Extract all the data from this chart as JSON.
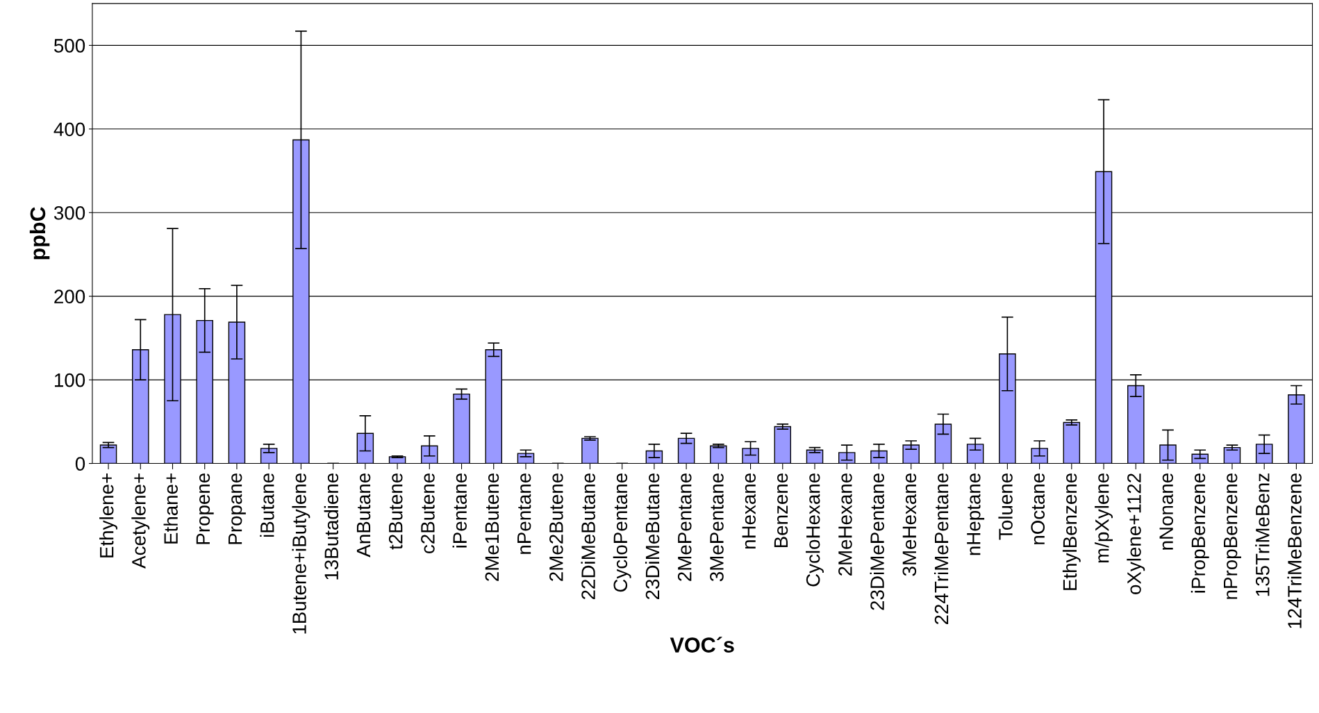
{
  "chart_data": {
    "type": "bar",
    "xlabel": "VOC´s",
    "ylabel": "ppbC",
    "categories": [
      "Ethylene+",
      "Acetylene+",
      "Ethane+",
      "Propene",
      "Propane",
      "iButane",
      "1Butene+iButylene",
      "13Butadiene",
      "AnButane",
      "t2Butene",
      "c2Butene",
      "iPentane",
      "2Me1Butene",
      "nPentane",
      "2Me2Butene",
      "22DiMeButane",
      "CycloPentane",
      "23DiMeButane",
      "2MePentane",
      "3MePentane",
      "nHexane",
      "Benzene",
      "CycloHexane",
      "2MeHexane",
      "23DiMePentane",
      "3MeHexane",
      "224TriMePentane",
      "nHeptane",
      "Toluene",
      "nOctane",
      "EthylBenzene",
      "m/pXylene",
      "oXylene+1122",
      "nNonane",
      "iPropBenzene",
      "nPropBenzene",
      "135TriMeBenz",
      "124TriMeBenzene"
    ],
    "values": [
      22,
      136,
      178,
      171,
      169,
      18,
      387,
      0,
      36,
      8,
      21,
      83,
      136,
      12,
      0,
      30,
      0,
      15,
      30,
      21,
      18,
      44,
      16,
      13,
      15,
      22,
      47,
      23,
      131,
      18,
      49,
      349,
      93,
      22,
      11,
      19,
      23,
      82
    ],
    "errors": [
      3,
      36,
      103,
      38,
      44,
      5,
      130,
      null,
      21,
      1,
      12,
      6,
      8,
      4,
      null,
      2,
      null,
      8,
      6,
      2,
      8,
      3,
      3,
      9,
      8,
      5,
      12,
      7,
      44,
      9,
      3,
      86,
      13,
      18,
      5,
      3,
      11,
      11
    ],
    "color": "#9999ff",
    "ylim": [
      0,
      550
    ],
    "yticks": [
      0,
      100,
      200,
      300,
      400,
      500
    ],
    "grid": "y"
  }
}
